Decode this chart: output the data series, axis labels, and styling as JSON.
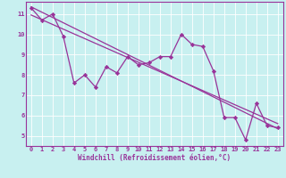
{
  "title": "",
  "xlabel": "Windchill (Refroidissement éolien,°C)",
  "ylabel": "",
  "bg_color": "#c8f0f0",
  "line_color": "#993399",
  "grid_color": "#ffffff",
  "xlim": [
    -0.5,
    23.5
  ],
  "ylim": [
    4.5,
    11.6
  ],
  "x_ticks": [
    0,
    1,
    2,
    3,
    4,
    5,
    6,
    7,
    8,
    9,
    10,
    11,
    12,
    13,
    14,
    15,
    16,
    17,
    18,
    19,
    20,
    21,
    22,
    23
  ],
  "y_ticks": [
    5,
    6,
    7,
    8,
    9,
    10,
    11
  ],
  "data_line": [
    11.3,
    10.7,
    11.0,
    9.9,
    7.6,
    8.0,
    7.4,
    8.4,
    8.1,
    8.9,
    8.5,
    8.6,
    8.9,
    8.9,
    10.0,
    9.5,
    9.4,
    8.2,
    5.9,
    5.9,
    4.8,
    6.6,
    5.5,
    5.4
  ],
  "line1_start_y": 11.35,
  "line1_end_y": 5.35,
  "line2_start_y": 10.95,
  "line2_end_y": 5.6
}
